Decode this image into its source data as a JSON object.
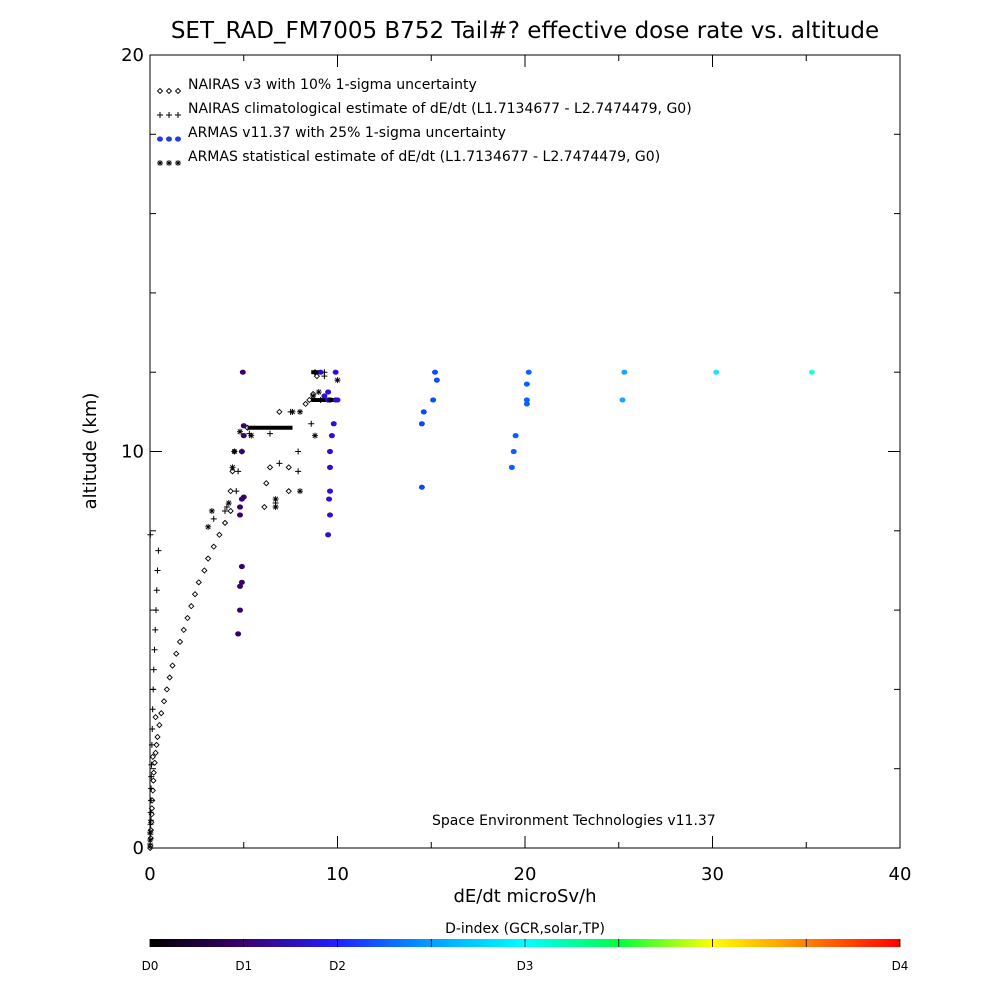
{
  "chart_data": {
    "type": "scatter",
    "title": "SET_RAD_FM7005  B752 Tail#? effective dose rate vs. altitude",
    "xlabel": "dE/dt microSv/h",
    "ylabel": "altitude (km)",
    "xlim": [
      0,
      40
    ],
    "ylim": [
      0,
      20
    ],
    "x_tick_labels": [
      "0",
      "10",
      "20",
      "30",
      "40"
    ],
    "y_tick_labels": [
      "0",
      "10",
      "20"
    ],
    "x_ticks": [
      0,
      10,
      20,
      30,
      40
    ],
    "y_ticks": [
      0,
      10,
      20
    ],
    "x_minor_step": 5,
    "y_minor_step": 2,
    "grid": false,
    "legend_position": "top-left",
    "credit": "Space Environment Technologies v11.37",
    "series": [
      {
        "name": "NAIRAS v3 with 10% 1-sigma uncertainty",
        "marker": "diamond",
        "symbol": "◇◇◇",
        "color": "#000000",
        "points": [
          [
            0.02,
            0.05
          ],
          [
            0.04,
            0.25
          ],
          [
            0.05,
            0.45
          ],
          [
            0.07,
            0.65
          ],
          [
            0.09,
            0.85
          ],
          [
            0.1,
            1.0
          ],
          [
            0.12,
            1.2
          ],
          [
            0.15,
            1.45
          ],
          [
            0.18,
            1.7
          ],
          [
            0.2,
            1.9
          ],
          [
            0.25,
            2.15
          ],
          [
            0.3,
            2.4
          ],
          [
            0.35,
            2.6
          ],
          [
            0.4,
            2.8
          ],
          [
            0.5,
            3.1
          ],
          [
            0.6,
            3.4
          ],
          [
            0.75,
            3.7
          ],
          [
            0.9,
            4.0
          ],
          [
            1.05,
            4.3
          ],
          [
            1.2,
            4.6
          ],
          [
            1.4,
            4.9
          ],
          [
            1.6,
            5.2
          ],
          [
            1.8,
            5.5
          ],
          [
            2.0,
            5.8
          ],
          [
            2.2,
            6.1
          ],
          [
            2.4,
            6.4
          ],
          [
            2.6,
            6.7
          ],
          [
            2.9,
            7.0
          ],
          [
            3.1,
            7.3
          ],
          [
            3.4,
            7.6
          ],
          [
            3.7,
            7.9
          ],
          [
            4.0,
            8.2
          ],
          [
            4.3,
            8.5
          ],
          [
            4.3,
            9.0
          ],
          [
            4.4,
            9.5
          ],
          [
            4.5,
            10.0
          ],
          [
            5.2,
            10.6
          ],
          [
            6.1,
            8.6
          ],
          [
            6.2,
            9.2
          ],
          [
            6.4,
            9.6
          ],
          [
            7.4,
            9.0
          ],
          [
            7.4,
            9.6
          ],
          [
            6.9,
            11.0
          ],
          [
            8.3,
            11.2
          ],
          [
            8.5,
            11.3
          ],
          [
            8.7,
            11.45
          ],
          [
            8.9,
            11.9
          ],
          [
            8.8,
            12.0
          ],
          [
            0.01,
            0.0
          ],
          [
            0.15,
            2.3
          ],
          [
            0.3,
            3.3
          ]
        ]
      },
      {
        "name": "NAIRAS climatological estimate of dE/dt (L1.7134677 - L2.7474479, G0)",
        "marker": "plus",
        "symbol": "+++",
        "color": "#000000",
        "points": [
          [
            0.01,
            0.1
          ],
          [
            0.02,
            0.35
          ],
          [
            0.03,
            0.6
          ],
          [
            0.04,
            0.9
          ],
          [
            0.05,
            1.2
          ],
          [
            0.06,
            1.5
          ],
          [
            0.07,
            1.8
          ],
          [
            0.08,
            2.1
          ],
          [
            0.1,
            2.6
          ],
          [
            0.12,
            3.0
          ],
          [
            0.14,
            3.5
          ],
          [
            0.17,
            4.0
          ],
          [
            0.2,
            4.5
          ],
          [
            0.24,
            5.0
          ],
          [
            0.28,
            5.5
          ],
          [
            0.32,
            6.0
          ],
          [
            0.36,
            6.5
          ],
          [
            0.4,
            7.0
          ],
          [
            0.45,
            7.5
          ],
          [
            0.02,
            7.9
          ],
          [
            3.4,
            8.3
          ],
          [
            4.0,
            8.5
          ],
          [
            4.1,
            8.6
          ],
          [
            4.6,
            9.0
          ],
          [
            4.7,
            9.5
          ],
          [
            4.9,
            10.0
          ],
          [
            5.3,
            10.45
          ],
          [
            6.4,
            10.45
          ],
          [
            6.7,
            8.7
          ],
          [
            6.9,
            9.7
          ],
          [
            7.9,
            9.5
          ],
          [
            7.9,
            10.0
          ],
          [
            7.5,
            11.0
          ],
          [
            8.6,
            10.7
          ],
          [
            9.1,
            11.3
          ],
          [
            9.3,
            11.9
          ],
          [
            9.3,
            12.0
          ],
          [
            0.05,
            0.7
          ]
        ]
      },
      {
        "name": "ARMAS v11.37 with 25% 1-sigma uncertainty",
        "marker": "dot",
        "symbol": "●●●",
        "color": "#1f3fe0",
        "colorbar_coloured": true,
        "points": [
          [
            4.7,
            5.4
          ],
          [
            4.8,
            6.0
          ],
          [
            4.8,
            6.6
          ],
          [
            4.9,
            6.7
          ],
          [
            4.9,
            7.1
          ],
          [
            4.8,
            8.4
          ],
          [
            4.8,
            8.6
          ],
          [
            4.9,
            8.8
          ],
          [
            5.0,
            8.85
          ],
          [
            4.9,
            10.0
          ],
          [
            5.0,
            10.4
          ],
          [
            5.0,
            10.65
          ],
          [
            4.95,
            12.0
          ],
          [
            9.1,
            12.0
          ],
          [
            9.3,
            11.4
          ],
          [
            9.5,
            11.3
          ],
          [
            9.5,
            11.5
          ],
          [
            9.6,
            9.6
          ],
          [
            9.6,
            9.0
          ],
          [
            9.6,
            8.4
          ],
          [
            9.5,
            7.9
          ],
          [
            9.55,
            8.8
          ],
          [
            9.6,
            10.0
          ],
          [
            9.7,
            10.4
          ],
          [
            9.8,
            10.7
          ],
          [
            9.9,
            11.3
          ],
          [
            9.9,
            12.0
          ],
          [
            10.0,
            11.3
          ],
          [
            14.5,
            9.1
          ],
          [
            14.5,
            10.7
          ],
          [
            14.6,
            11.0
          ],
          [
            15.1,
            11.3
          ],
          [
            15.2,
            12.0
          ],
          [
            15.3,
            11.8
          ],
          [
            19.3,
            9.6
          ],
          [
            19.4,
            10.0
          ],
          [
            19.5,
            10.4
          ],
          [
            20.1,
            11.2
          ],
          [
            20.1,
            11.3
          ],
          [
            20.1,
            11.7
          ],
          [
            20.2,
            12.0
          ],
          [
            25.2,
            11.3
          ],
          [
            25.3,
            12.0
          ],
          [
            30.2,
            12.0
          ],
          [
            35.3,
            12.0
          ]
        ]
      },
      {
        "name": "ARMAS statistical estimate of dE/dt (L1.7134677 - L2.7474479, G0)",
        "marker": "asterisk",
        "symbol": "***",
        "color": "#000000",
        "points": [
          [
            3.3,
            8.5
          ],
          [
            3.1,
            8.1
          ],
          [
            4.2,
            8.7
          ],
          [
            4.4,
            9.6
          ],
          [
            4.5,
            10.0
          ],
          [
            4.8,
            10.5
          ],
          [
            5.4,
            10.4
          ],
          [
            6.7,
            8.8
          ],
          [
            6.7,
            8.6
          ],
          [
            8.0,
            9.0
          ],
          [
            7.6,
            11.0
          ],
          [
            8.0,
            11.0
          ],
          [
            8.8,
            10.4
          ],
          [
            8.7,
            11.4
          ],
          [
            9.0,
            11.5
          ],
          [
            9.6,
            11.3
          ],
          [
            10.0,
            11.8
          ],
          [
            0.01,
            0.2
          ],
          [
            0.01,
            0.4
          ]
        ]
      }
    ],
    "dense_segments": [
      {
        "x_from": 5.2,
        "x_to": 7.6,
        "y": 10.6,
        "color": "#000000"
      },
      {
        "x_from": 8.6,
        "x_to": 9.9,
        "y": 11.3,
        "color": "#000000"
      },
      {
        "x_from": 8.6,
        "x_to": 9.1,
        "y": 12.0,
        "color": "#000000"
      }
    ],
    "colorbar": {
      "title": "D-index (GCR,solar,TP)",
      "labels": [
        "D0",
        "D1",
        "D2",
        "D3",
        "D4"
      ],
      "label_positions": [
        0.0,
        0.125,
        0.25,
        0.5,
        1.0
      ],
      "colors": [
        "#000000",
        "#3a0070",
        "#2020ff",
        "#00a0ff",
        "#00ffff",
        "#00ff40",
        "#ffff00",
        "#ff8000",
        "#ff0000"
      ]
    }
  }
}
